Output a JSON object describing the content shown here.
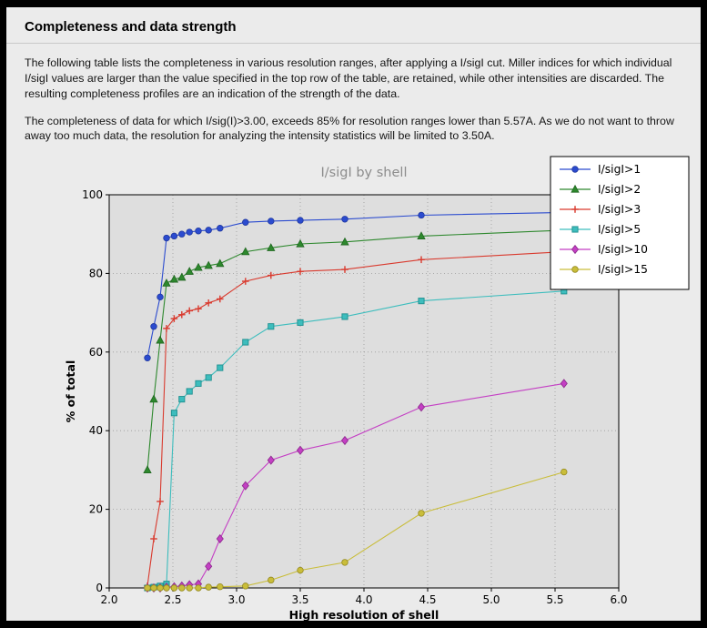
{
  "page": {
    "title": "Completeness and data strength",
    "paragraph1": "The following table lists the completeness in various resolution ranges, after applying a I/sigI cut. Miller indices for which individual I/sigI values are larger than the value specified in the top row of the table, are retained, while other intensities are discarded. The resulting completeness profiles are an indication of the strength of the data.",
    "paragraph2": "The completeness of data for which I/sig(I)>3.00, exceeds  85% for resolution ranges lower than 5.57A. As we do not want to throw away too much data, the resolution for analyzing the intensity statistics will be limited to 3.50A."
  },
  "chart_data": {
    "type": "line",
    "title": "I/sigI by shell",
    "xlabel": "High resolution of shell",
    "ylabel": "% of total",
    "xlim": [
      2.0,
      6.0
    ],
    "ylim": [
      0,
      100
    ],
    "x_ticks": [
      "2.0",
      "2.5",
      "3.0",
      "3.5",
      "4.0",
      "4.5",
      "5.0",
      "5.5",
      "6.0"
    ],
    "y_ticks": [
      "0",
      "20",
      "40",
      "60",
      "80",
      "100"
    ],
    "grid": true,
    "legend_position": "top-right",
    "colors": {
      "plot_bg": "#dedede",
      "page_bg": "#ebebeb",
      "grid": "#9a9a9a",
      "title": "#8c8c8c",
      "legend_bg": "#ffffff",
      "legend_border": "#000000"
    },
    "x": [
      2.3,
      2.35,
      2.4,
      2.45,
      2.51,
      2.57,
      2.63,
      2.7,
      2.78,
      2.87,
      3.07,
      3.27,
      3.5,
      3.85,
      4.45,
      5.57
    ],
    "series": [
      {
        "name": "I/sigI>1",
        "color": "#2b4bcf",
        "edge": "#20389f",
        "marker": "circle",
        "values": [
          58.5,
          66.5,
          74,
          89,
          89.5,
          90,
          90.5,
          90.8,
          91,
          91.5,
          93,
          93.3,
          93.5,
          93.8,
          94.8,
          95.5
        ]
      },
      {
        "name": "I/sigI>2",
        "color": "#2d882d",
        "edge": "#1f661f",
        "marker": "triangle",
        "values": [
          30,
          48,
          63,
          77.5,
          78.5,
          79,
          80.5,
          81.5,
          82,
          82.5,
          85.5,
          86.5,
          87.5,
          88,
          89.5,
          91
        ]
      },
      {
        "name": "I/sigI>3",
        "color": "#d93a2e",
        "edge": "#a82a20",
        "marker": "plus",
        "values": [
          0.5,
          12.5,
          22,
          66,
          68.5,
          69.5,
          70.5,
          71,
          72.5,
          73.5,
          78,
          79.5,
          80.5,
          81,
          83.5,
          85.5
        ]
      },
      {
        "name": "I/sigI>5",
        "color": "#3dbdbd",
        "edge": "#1e8f8f",
        "marker": "square",
        "values": [
          0,
          0.2,
          0.5,
          1,
          44.5,
          48,
          50,
          52,
          53.5,
          56,
          62.5,
          66.5,
          67.5,
          69,
          73,
          75.5
        ]
      },
      {
        "name": "I/sigI>10",
        "color": "#c43fc4",
        "edge": "#8f2d8f",
        "marker": "diamond",
        "values": [
          0,
          0,
          0,
          0.2,
          0.3,
          0.5,
          0.8,
          1,
          5.5,
          12.5,
          26,
          32.5,
          35,
          37.5,
          46,
          52
        ]
      },
      {
        "name": "I/sigI>15",
        "color": "#c9bd3a",
        "edge": "#958a20",
        "marker": "circle",
        "values": [
          0,
          0,
          0,
          0,
          0,
          0,
          0,
          0,
          0.2,
          0.3,
          0.5,
          2,
          4.5,
          6.5,
          19,
          29.5
        ]
      }
    ]
  }
}
